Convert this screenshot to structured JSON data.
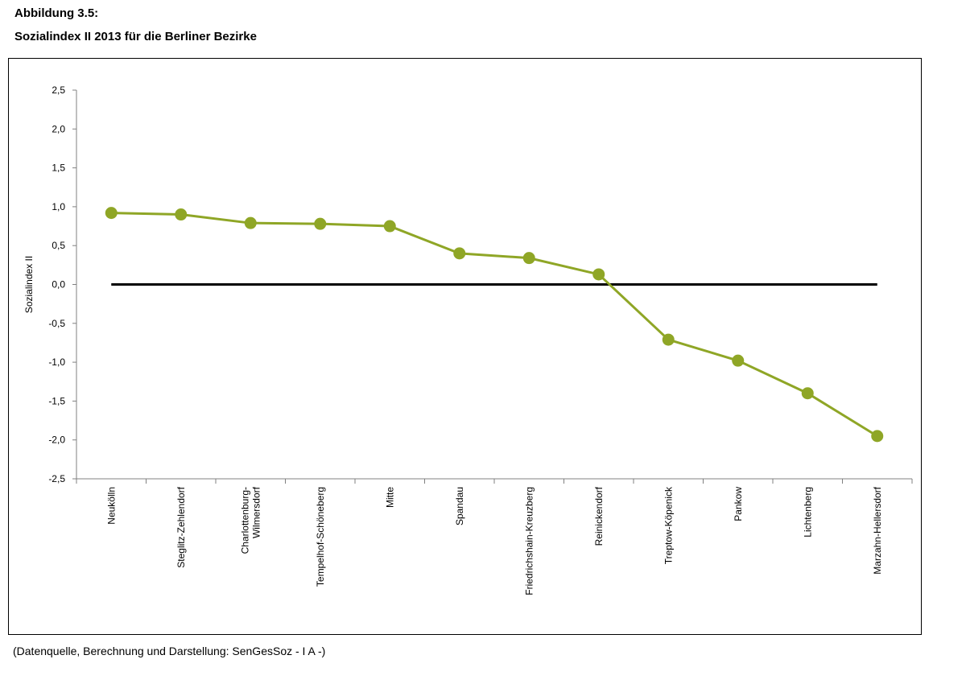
{
  "figure_label": "Abbildung 3.5:",
  "title": "Sozialindex II 2013 für die Berliner Bezirke",
  "source": "(Datenquelle, Berechnung und Darstellung: SenGesSoz - I A -)",
  "colors": {
    "series": "#8fa626",
    "baseline": "#000000",
    "axis": "#808080"
  },
  "chart_data": {
    "type": "line",
    "title": "Sozialindex II 2013 für die Berliner Bezirke",
    "xlabel": "",
    "ylabel": "Sozialindex II",
    "ylim": [
      -2.5,
      2.5
    ],
    "yticks": [
      2.5,
      2.0,
      1.5,
      1.0,
      0.5,
      0.0,
      -0.5,
      -1.0,
      -1.5,
      -2.0,
      -2.5
    ],
    "ytick_labels": [
      "2,5",
      "2,0",
      "1,5",
      "1,0",
      "0,5",
      "0,0",
      "-0,5",
      "-1,0",
      "-1,5",
      "-2,0",
      "-2,5"
    ],
    "grid": false,
    "reference_line": 0,
    "categories": [
      [
        "Neukölln"
      ],
      [
        "Steglitz-Zehlendorf"
      ],
      [
        "Charlottenburg-",
        "Wilmersdorf"
      ],
      [
        "Tempelhof-Schöneberg"
      ],
      [
        "Mitte"
      ],
      [
        "Spandau"
      ],
      [
        "Friedrichshain-Kreuzberg"
      ],
      [
        "Reinickendorf"
      ],
      [
        "Treptow-Köpenick"
      ],
      [
        "Pankow"
      ],
      [
        "Lichtenberg"
      ],
      [
        "Marzahn-Hellersdorf"
      ]
    ],
    "series": [
      {
        "values": [
          0.92,
          0.9,
          0.79,
          0.78,
          0.75,
          0.4,
          0.34,
          0.13,
          -0.71,
          -0.98,
          -1.4,
          -1.95
        ]
      }
    ]
  }
}
